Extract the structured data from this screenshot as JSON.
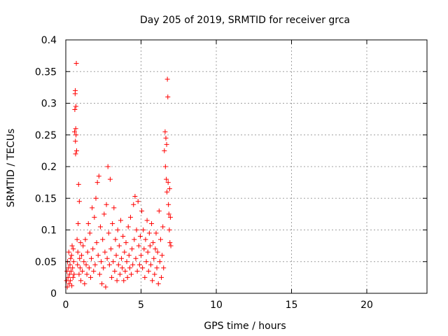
{
  "chart_data": {
    "type": "scatter",
    "title": "Day 205 of 2019, SRMTID for receiver grca",
    "xlabel": "GPS time / hours",
    "ylabel": "SRMTID / TECUs",
    "xlim": [
      0,
      24
    ],
    "ylim": [
      0,
      0.4
    ],
    "x_ticks": [
      0,
      5,
      10,
      15,
      20
    ],
    "x_tick_labels": [
      "0",
      "5",
      "10",
      "15",
      "20"
    ],
    "y_ticks": [
      0,
      0.05,
      0.1,
      0.15,
      0.2,
      0.25,
      0.3,
      0.35,
      0.4
    ],
    "y_tick_labels": [
      "0",
      "0.05",
      "0.1",
      "0.15",
      "0.2",
      "0.25",
      "0.3",
      "0.35",
      "0.4"
    ],
    "grid": true,
    "marker": "plus",
    "point_color": "#ff0000",
    "series": [
      {
        "points": [
          [
            0.05,
            0.02
          ],
          [
            0.08,
            0.035
          ],
          [
            0.1,
            0.01
          ],
          [
            0.12,
            0.05
          ],
          [
            0.15,
            0.025
          ],
          [
            0.18,
            0.04
          ],
          [
            0.2,
            0.065
          ],
          [
            0.22,
            0.015
          ],
          [
            0.25,
            0.03
          ],
          [
            0.28,
            0.045
          ],
          [
            0.3,
            0.02
          ],
          [
            0.32,
            0.055
          ],
          [
            0.35,
            0.035
          ],
          [
            0.38,
            0.06
          ],
          [
            0.4,
            0.012
          ],
          [
            0.42,
            0.075
          ],
          [
            0.45,
            0.04
          ],
          [
            0.48,
            0.025
          ],
          [
            0.5,
            0.07
          ],
          [
            0.52,
            0.05
          ],
          [
            0.55,
            0.03
          ],
          [
            0.58,
            0.255
          ],
          [
            0.6,
            0.29
          ],
          [
            0.62,
            0.315
          ],
          [
            0.63,
            0.32
          ],
          [
            0.64,
            0.24
          ],
          [
            0.65,
            0.22
          ],
          [
            0.66,
            0.26
          ],
          [
            0.67,
            0.295
          ],
          [
            0.68,
            0.25
          ],
          [
            0.7,
            0.363
          ],
          [
            0.72,
            0.225
          ],
          [
            0.75,
            0.085
          ],
          [
            0.78,
            0.045
          ],
          [
            0.8,
            0.065
          ],
          [
            0.82,
            0.11
          ],
          [
            0.85,
            0.172
          ],
          [
            0.88,
            0.03
          ],
          [
            0.9,
            0.145
          ],
          [
            0.92,
            0.055
          ],
          [
            0.95,
            0.04
          ],
          [
            0.98,
            0.08
          ],
          [
            1.0,
            0.02
          ],
          [
            1.05,
            0.06
          ],
          [
            1.1,
            0.035
          ],
          [
            1.15,
            0.075
          ],
          [
            1.2,
            0.05
          ],
          [
            1.25,
            0.015
          ],
          [
            1.3,
            0.085
          ],
          [
            1.35,
            0.045
          ],
          [
            1.4,
            0.03
          ],
          [
            1.45,
            0.065
          ],
          [
            1.5,
            0.11
          ],
          [
            1.55,
            0.04
          ],
          [
            1.6,
            0.095
          ],
          [
            1.65,
            0.025
          ],
          [
            1.7,
            0.055
          ],
          [
            1.75,
            0.135
          ],
          [
            1.8,
            0.07
          ],
          [
            1.85,
            0.035
          ],
          [
            1.9,
            0.12
          ],
          [
            1.95,
            0.045
          ],
          [
            2.0,
            0.15
          ],
          [
            2.05,
            0.08
          ],
          [
            2.1,
            0.175
          ],
          [
            2.15,
            0.06
          ],
          [
            2.2,
            0.185
          ],
          [
            2.25,
            0.03
          ],
          [
            2.3,
            0.105
          ],
          [
            2.35,
            0.05
          ],
          [
            2.4,
            0.015
          ],
          [
            2.45,
            0.085
          ],
          [
            2.5,
            0.04
          ],
          [
            2.55,
            0.125
          ],
          [
            2.6,
            0.065
          ],
          [
            2.65,
            0.01
          ],
          [
            2.7,
            0.14
          ],
          [
            2.75,
            0.055
          ],
          [
            2.8,
            0.2
          ],
          [
            2.85,
            0.095
          ],
          [
            2.9,
            0.045
          ],
          [
            2.95,
            0.18
          ],
          [
            3.0,
            0.07
          ],
          [
            3.05,
            0.025
          ],
          [
            3.1,
            0.11
          ],
          [
            3.15,
            0.05
          ],
          [
            3.2,
            0.135
          ],
          [
            3.25,
            0.035
          ],
          [
            3.3,
            0.085
          ],
          [
            3.35,
            0.06
          ],
          [
            3.4,
            0.02
          ],
          [
            3.45,
            0.1
          ],
          [
            3.5,
            0.045
          ],
          [
            3.55,
            0.075
          ],
          [
            3.6,
            0.03
          ],
          [
            3.65,
            0.115
          ],
          [
            3.7,
            0.055
          ],
          [
            3.75,
            0.04
          ],
          [
            3.8,
            0.09
          ],
          [
            3.85,
            0.02
          ],
          [
            3.9,
            0.065
          ],
          [
            3.95,
            0.035
          ],
          [
            4.0,
            0.08
          ],
          [
            4.05,
            0.05
          ],
          [
            4.1,
            0.025
          ],
          [
            4.15,
            0.105
          ],
          [
            4.2,
            0.06
          ],
          [
            4.25,
            0.04
          ],
          [
            4.3,
            0.12
          ],
          [
            4.35,
            0.03
          ],
          [
            4.4,
            0.07
          ],
          [
            4.45,
            0.045
          ],
          [
            4.5,
            0.14
          ],
          [
            4.55,
            0.085
          ],
          [
            4.6,
            0.153
          ],
          [
            4.65,
            0.055
          ],
          [
            4.7,
            0.1
          ],
          [
            4.75,
            0.035
          ],
          [
            4.8,
            0.145
          ],
          [
            4.85,
            0.075
          ],
          [
            4.9,
            0.045
          ],
          [
            4.95,
            0.09
          ],
          [
            5.0,
            0.06
          ],
          [
            5.05,
            0.13
          ],
          [
            5.1,
            0.04
          ],
          [
            5.15,
            0.1
          ],
          [
            5.2,
            0.07
          ],
          [
            5.25,
            0.025
          ],
          [
            5.3,
            0.085
          ],
          [
            5.35,
            0.05
          ],
          [
            5.4,
            0.115
          ],
          [
            5.45,
            0.065
          ],
          [
            5.5,
            0.035
          ],
          [
            5.55,
            0.095
          ],
          [
            5.6,
            0.075
          ],
          [
            5.65,
            0.045
          ],
          [
            5.7,
            0.11
          ],
          [
            5.75,
            0.02
          ],
          [
            5.8,
            0.08
          ],
          [
            5.85,
            0.055
          ],
          [
            5.9,
            0.03
          ],
          [
            5.95,
            0.07
          ],
          [
            6.0,
            0.095
          ],
          [
            6.05,
            0.04
          ],
          [
            6.1,
            0.065
          ],
          [
            6.15,
            0.015
          ],
          [
            6.2,
            0.13
          ],
          [
            6.25,
            0.05
          ],
          [
            6.3,
            0.085
          ],
          [
            6.35,
            0.025
          ],
          [
            6.4,
            0.06
          ],
          [
            6.45,
            0.105
          ],
          [
            6.5,
            0.04
          ],
          [
            6.55,
            0.225
          ],
          [
            6.6,
            0.255
          ],
          [
            6.62,
            0.2
          ],
          [
            6.65,
            0.245
          ],
          [
            6.68,
            0.18
          ],
          [
            6.7,
            0.235
          ],
          [
            6.72,
            0.16
          ],
          [
            6.75,
            0.338
          ],
          [
            6.78,
            0.31
          ],
          [
            6.8,
            0.175
          ],
          [
            6.82,
            0.14
          ],
          [
            6.85,
            0.125
          ],
          [
            6.88,
            0.1
          ],
          [
            6.9,
            0.165
          ],
          [
            6.92,
            0.08
          ],
          [
            6.95,
            0.12
          ],
          [
            6.98,
            0.075
          ]
        ]
      }
    ]
  }
}
